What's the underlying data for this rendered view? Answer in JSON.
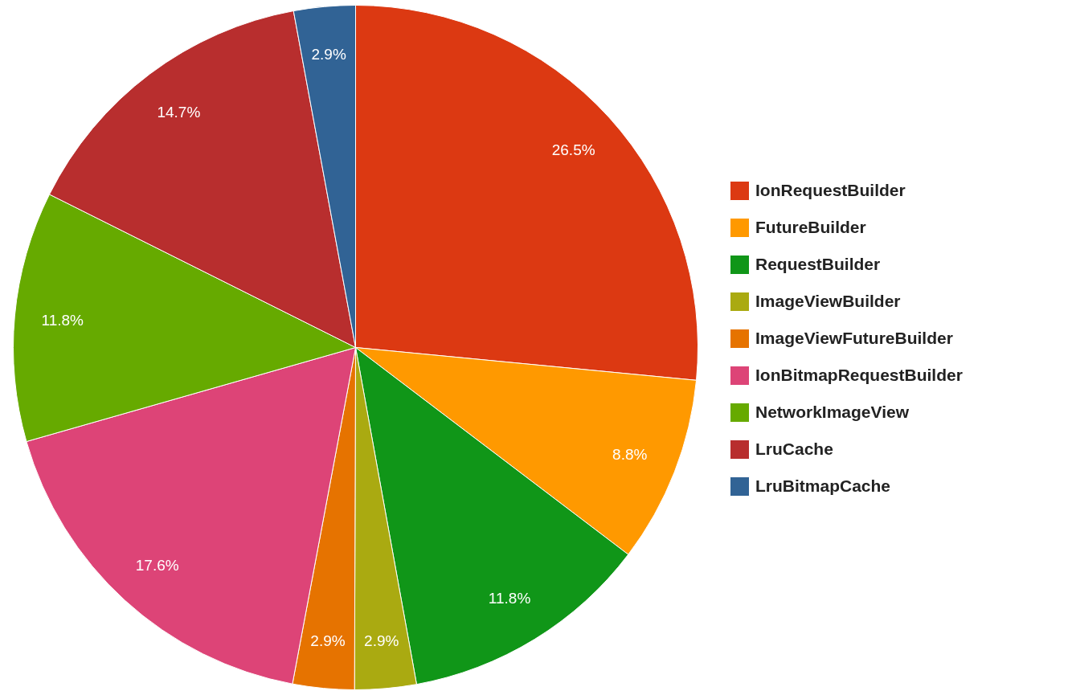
{
  "chart_data": {
    "type": "pie",
    "categories": [
      "IonRequestBuilder",
      "FutureBuilder",
      "RequestBuilder",
      "ImageViewBuilder",
      "ImageViewFutureBuilder",
      "IonBitmapRequestBuilder",
      "NetworkImageView",
      "LruCache",
      "LruBitmapCache"
    ],
    "values": [
      26.5,
      8.8,
      11.8,
      2.9,
      2.9,
      17.6,
      11.8,
      14.7,
      2.9
    ],
    "colors": [
      "#dc3912",
      "#ff9900",
      "#109618",
      "#aaaa11",
      "#e67300",
      "#dd4477",
      "#66aa00",
      "#b82e2e",
      "#316395"
    ],
    "value_labels": [
      "26.5%",
      "8.8%",
      "11.8%",
      "2.9%",
      "2.9%",
      "17.6%",
      "11.8%",
      "14.7%",
      "2.9%"
    ],
    "legend": "right"
  }
}
